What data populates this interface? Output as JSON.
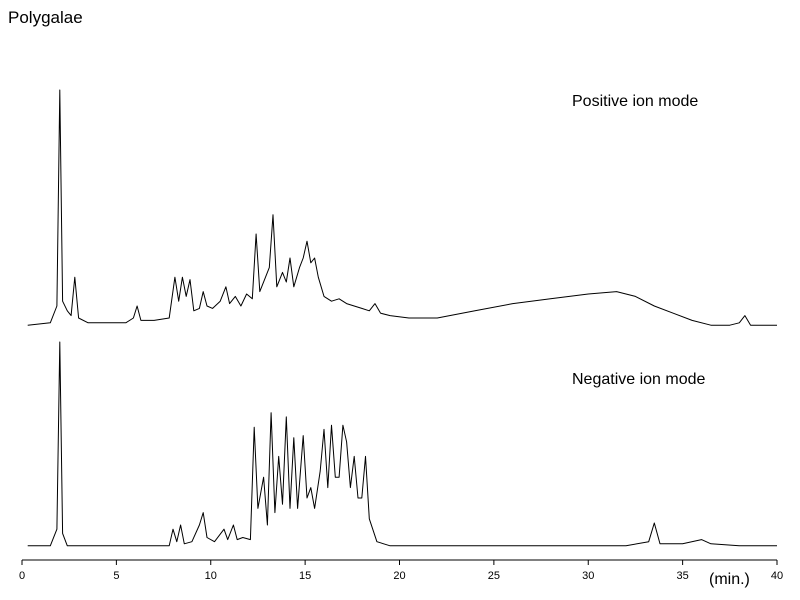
{
  "chart_data": {
    "type": "line",
    "title": "Polygalae",
    "xlabel": "(min.)",
    "ylabel": "",
    "xlim": [
      0,
      40
    ],
    "x_ticks": [
      "0",
      "5",
      "10",
      "15",
      "20",
      "25",
      "30",
      "35",
      "40"
    ],
    "grid": false,
    "line_color": "#000000",
    "series": [
      {
        "name": "Positive ion mode",
        "points": [
          [
            0.3,
            0.02
          ],
          [
            1.5,
            0.03
          ],
          [
            1.85,
            0.1
          ],
          [
            2.0,
            1.0
          ],
          [
            2.15,
            0.12
          ],
          [
            2.4,
            0.08
          ],
          [
            2.6,
            0.06
          ],
          [
            2.8,
            0.22
          ],
          [
            3.0,
            0.05
          ],
          [
            3.5,
            0.03
          ],
          [
            5.5,
            0.03
          ],
          [
            5.9,
            0.05
          ],
          [
            6.1,
            0.1
          ],
          [
            6.3,
            0.04
          ],
          [
            7.0,
            0.04
          ],
          [
            7.8,
            0.05
          ],
          [
            8.1,
            0.22
          ],
          [
            8.3,
            0.12
          ],
          [
            8.5,
            0.22
          ],
          [
            8.7,
            0.14
          ],
          [
            8.9,
            0.21
          ],
          [
            9.1,
            0.08
          ],
          [
            9.4,
            0.09
          ],
          [
            9.6,
            0.16
          ],
          [
            9.8,
            0.1
          ],
          [
            10.1,
            0.09
          ],
          [
            10.5,
            0.12
          ],
          [
            10.8,
            0.18
          ],
          [
            11.0,
            0.11
          ],
          [
            11.3,
            0.14
          ],
          [
            11.6,
            0.1
          ],
          [
            11.9,
            0.15
          ],
          [
            12.2,
            0.13
          ],
          [
            12.4,
            0.4
          ],
          [
            12.6,
            0.16
          ],
          [
            12.9,
            0.22
          ],
          [
            13.1,
            0.26
          ],
          [
            13.3,
            0.48
          ],
          [
            13.5,
            0.18
          ],
          [
            13.8,
            0.24
          ],
          [
            14.0,
            0.2
          ],
          [
            14.2,
            0.3
          ],
          [
            14.4,
            0.18
          ],
          [
            14.7,
            0.26
          ],
          [
            14.9,
            0.3
          ],
          [
            15.1,
            0.37
          ],
          [
            15.3,
            0.28
          ],
          [
            15.5,
            0.3
          ],
          [
            15.7,
            0.22
          ],
          [
            16.0,
            0.14
          ],
          [
            16.4,
            0.12
          ],
          [
            16.8,
            0.13
          ],
          [
            17.2,
            0.11
          ],
          [
            17.6,
            0.1
          ],
          [
            18.0,
            0.09
          ],
          [
            18.4,
            0.08
          ],
          [
            18.7,
            0.11
          ],
          [
            19.0,
            0.07
          ],
          [
            19.5,
            0.06
          ],
          [
            20.5,
            0.05
          ],
          [
            22.0,
            0.05
          ],
          [
            24.0,
            0.08
          ],
          [
            26.0,
            0.11
          ],
          [
            28.0,
            0.13
          ],
          [
            30.0,
            0.15
          ],
          [
            31.5,
            0.16
          ],
          [
            32.5,
            0.14
          ],
          [
            33.5,
            0.1
          ],
          [
            34.5,
            0.07
          ],
          [
            35.5,
            0.04
          ],
          [
            36.5,
            0.02
          ],
          [
            37.5,
            0.02
          ],
          [
            38.0,
            0.03
          ],
          [
            38.3,
            0.06
          ],
          [
            38.6,
            0.02
          ],
          [
            39.5,
            0.02
          ],
          [
            40.0,
            0.02
          ]
        ]
      },
      {
        "name": "Negative ion mode",
        "points": [
          [
            0.3,
            0.02
          ],
          [
            1.5,
            0.02
          ],
          [
            1.85,
            0.1
          ],
          [
            2.0,
            1.0
          ],
          [
            2.15,
            0.08
          ],
          [
            2.4,
            0.02
          ],
          [
            7.8,
            0.02
          ],
          [
            8.0,
            0.1
          ],
          [
            8.2,
            0.04
          ],
          [
            8.4,
            0.12
          ],
          [
            8.6,
            0.03
          ],
          [
            9.0,
            0.04
          ],
          [
            9.4,
            0.12
          ],
          [
            9.6,
            0.18
          ],
          [
            9.8,
            0.06
          ],
          [
            10.2,
            0.04
          ],
          [
            10.7,
            0.1
          ],
          [
            10.9,
            0.05
          ],
          [
            11.2,
            0.12
          ],
          [
            11.4,
            0.05
          ],
          [
            11.7,
            0.06
          ],
          [
            12.1,
            0.05
          ],
          [
            12.3,
            0.59
          ],
          [
            12.5,
            0.2
          ],
          [
            12.8,
            0.35
          ],
          [
            13.0,
            0.12
          ],
          [
            13.2,
            0.66
          ],
          [
            13.4,
            0.18
          ],
          [
            13.6,
            0.45
          ],
          [
            13.8,
            0.22
          ],
          [
            14.0,
            0.64
          ],
          [
            14.2,
            0.2
          ],
          [
            14.4,
            0.54
          ],
          [
            14.6,
            0.2
          ],
          [
            14.9,
            0.55
          ],
          [
            15.1,
            0.25
          ],
          [
            15.3,
            0.3
          ],
          [
            15.5,
            0.2
          ],
          [
            15.8,
            0.38
          ],
          [
            16.0,
            0.58
          ],
          [
            16.2,
            0.3
          ],
          [
            16.4,
            0.6
          ],
          [
            16.6,
            0.35
          ],
          [
            16.8,
            0.35
          ],
          [
            17.0,
            0.6
          ],
          [
            17.2,
            0.52
          ],
          [
            17.4,
            0.3
          ],
          [
            17.6,
            0.45
          ],
          [
            17.8,
            0.25
          ],
          [
            18.0,
            0.25
          ],
          [
            18.2,
            0.45
          ],
          [
            18.4,
            0.15
          ],
          [
            18.8,
            0.04
          ],
          [
            19.5,
            0.02
          ],
          [
            25.0,
            0.02
          ],
          [
            32.0,
            0.02
          ],
          [
            33.2,
            0.04
          ],
          [
            33.5,
            0.13
          ],
          [
            33.8,
            0.03
          ],
          [
            35.0,
            0.03
          ],
          [
            36.0,
            0.05
          ],
          [
            36.5,
            0.03
          ],
          [
            38.0,
            0.02
          ],
          [
            40.0,
            0.02
          ]
        ]
      }
    ]
  }
}
